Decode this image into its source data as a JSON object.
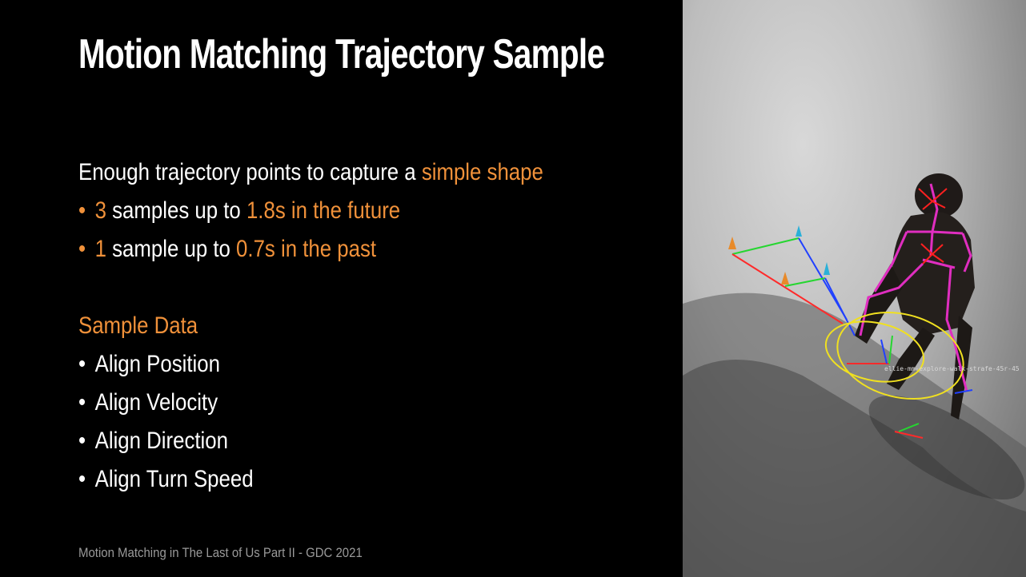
{
  "slide": {
    "title": "Motion Matching Trajectory Sample",
    "intro": {
      "text": "Enough trajectory points to capture a ",
      "accent": "simple shape"
    },
    "future_bullet": {
      "count": "3",
      "text": " samples up to ",
      "accent": "1.8s in the future"
    },
    "past_bullet": {
      "count": "1",
      "text": " sample up to ",
      "accent": "0.7s in the past"
    },
    "sample_data_heading": "Sample Data",
    "sample_data_items": [
      "Align Position",
      "Align Velocity",
      "Align Direction",
      "Align Turn Speed"
    ],
    "footer": "Motion Matching in The Last of Us Part II - GDC 2021",
    "bullet_glyph": "•"
  },
  "viewport": {
    "overlay_label": "ellie-mm-explore-walk-strafe-45r-45"
  },
  "colors": {
    "accent": "#f0913a",
    "background": "#000000",
    "text": "#ffffff",
    "footer": "#9a9a9a"
  }
}
